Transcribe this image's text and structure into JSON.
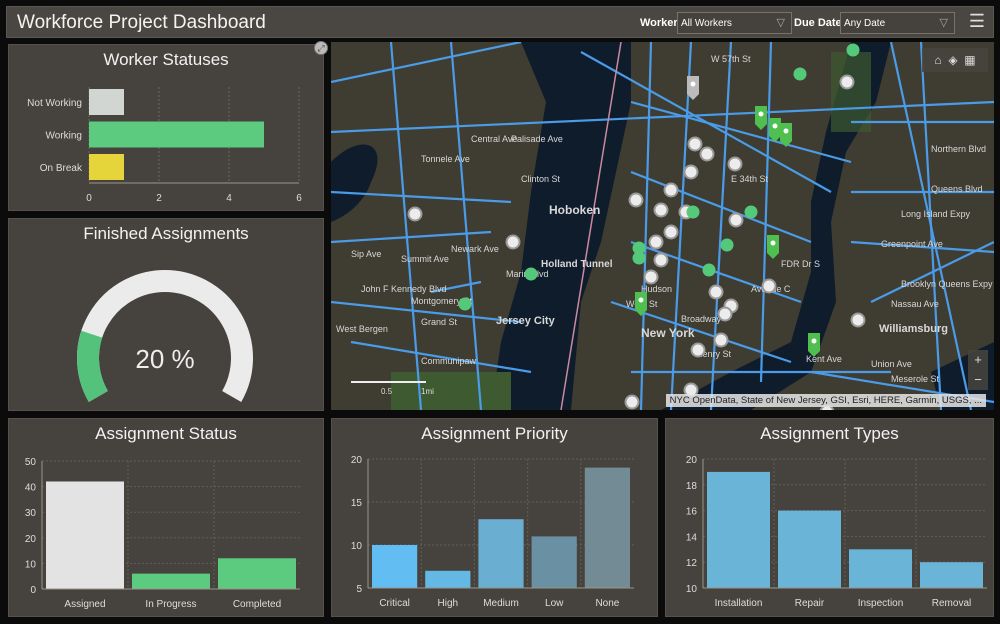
{
  "header": {
    "title": "Workforce Project Dashboard",
    "worker_label": "Worker",
    "worker_value": "All Workers",
    "due_label": "Due Date",
    "due_value": "Any Date"
  },
  "worker_statuses": {
    "title": "Worker Statuses"
  },
  "finished": {
    "title": "Finished Assignments",
    "value_text": "20 %",
    "percent": 20
  },
  "map": {
    "attribution": "NYC OpenData, State of New Jersey, GSI, Esri, HERE, Garmin, USGS, ...",
    "labels": [
      "Hoboken",
      "Jersey City",
      "New York",
      "Williamsburg",
      "Holland Tunnel",
      "West Bergen",
      "Communipaw",
      "Grand St",
      "Montgomery St",
      "Clinton St",
      "Palisade Ave",
      "Central Ave",
      "Summit Ave",
      "Newark Ave",
      "Marin Blvd",
      "Broadway",
      "Hudson",
      "West St",
      "Avenue C",
      "FDR Dr S",
      "Kent Ave",
      "Greenpoint Ave",
      "Queens Blvd",
      "Northern Blvd",
      "Long Island Expy",
      "Brooklyn Queens Expy",
      "W 57th St",
      "Henry St",
      "Sip Ave",
      "John F Kennedy Blvd",
      "E 34th St",
      "Nassau Ave",
      "Meserole St",
      "Union Ave",
      "Tonnele Ave"
    ],
    "scale_labels": [
      "0.5",
      "1mi"
    ],
    "zoom_in": "+",
    "zoom_out": "−"
  },
  "chart_data": [
    {
      "type": "bar",
      "orientation": "horizontal",
      "title": "Worker Statuses",
      "categories": [
        "Not Working",
        "Working",
        "On Break"
      ],
      "values": [
        1,
        5,
        1
      ],
      "colors": [
        "#d2d6d3",
        "#5ccb7f",
        "#e5d43a"
      ],
      "xlim": [
        0,
        6
      ],
      "xticks": [
        0,
        2,
        4,
        6
      ]
    },
    {
      "type": "gauge",
      "title": "Finished Assignments",
      "value": 20,
      "unit": "%",
      "colors": [
        "#55c27c",
        "#ebebeb"
      ]
    },
    {
      "type": "bar",
      "title": "Assignment Status",
      "categories": [
        "Assigned",
        "In Progress",
        "Completed"
      ],
      "values": [
        42,
        6,
        12
      ],
      "colors": [
        "#e2e3e2",
        "#5ccb7f",
        "#5ccb7f"
      ],
      "ylim": [
        0,
        50
      ],
      "yticks": [
        0,
        10,
        20,
        30,
        40,
        50
      ]
    },
    {
      "type": "bar",
      "title": "Assignment Priority",
      "categories": [
        "Critical",
        "High",
        "Medium",
        "Low",
        "None"
      ],
      "values": [
        10,
        7,
        13,
        11,
        19
      ],
      "colors": [
        "#62bdf2",
        "#64b8e6",
        "#6aaed2",
        "#6a91a3",
        "#728b95"
      ],
      "ylim": [
        5,
        20
      ],
      "yticks": [
        5,
        10,
        15,
        20
      ]
    },
    {
      "type": "bar",
      "title": "Assignment Types",
      "categories": [
        "Installation",
        "Repair",
        "Inspection",
        "Removal"
      ],
      "values": [
        19,
        16,
        13,
        12
      ],
      "colors": [
        "#6ab4d8",
        "#6ab4d8",
        "#6ab4d8",
        "#6ab4d8"
      ],
      "ylim": [
        10,
        20
      ],
      "yticks": [
        10,
        12,
        14,
        16,
        18,
        20
      ]
    }
  ]
}
